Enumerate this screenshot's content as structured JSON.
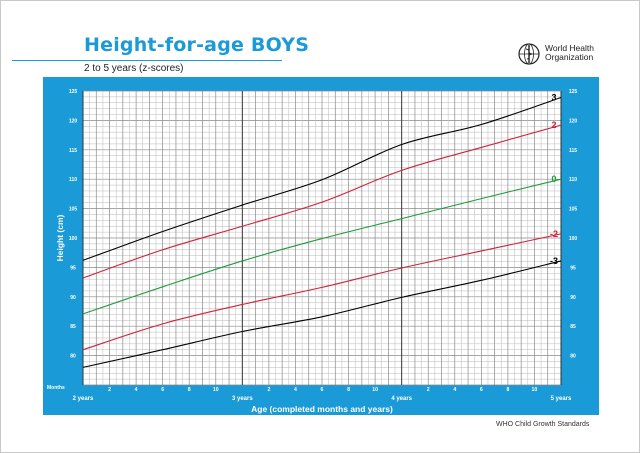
{
  "header": {
    "title": "Height-for-age BOYS",
    "subtitle": "2 to 5 years (z-scores)"
  },
  "organization": {
    "name_line1": "World Health",
    "name_line2": "Organization",
    "logo_icon": "who-emblem-icon"
  },
  "footer": {
    "note": "WHO Child Growth Standards"
  },
  "colors": {
    "frame": "#1a9ad6",
    "title": "#1a9ad6",
    "z3": "#000000",
    "z2": "#d0213c",
    "z0": "#1f9d3a",
    "zm2": "#d0213c",
    "zm3": "#000000"
  },
  "chart_data": {
    "type": "line",
    "title": "Height-for-age BOYS",
    "subtitle": "2 to 5 years (z-scores)",
    "xlabel": "Age (completed months and years)",
    "ylabel": "Height (cm)",
    "x_unit_label": "Months",
    "xlim": [
      24,
      60
    ],
    "ylim": [
      75,
      125
    ],
    "y_ticks": [
      80,
      85,
      90,
      95,
      100,
      105,
      110,
      115,
      120,
      125
    ],
    "x_month_ticks": [
      "2",
      "4",
      "6",
      "8",
      "10",
      "2",
      "4",
      "6",
      "8",
      "10",
      "2",
      "4",
      "6",
      "8",
      "10"
    ],
    "year_labels": [
      "2 years",
      "3 years",
      "4 years",
      "5 years"
    ],
    "grid": true,
    "x": [
      24,
      30,
      36,
      42,
      48,
      54,
      60
    ],
    "series": [
      {
        "name": "3",
        "values": [
          96.2,
          101.1,
          105.6,
          109.9,
          115.9,
          119.3,
          123.9
        ]
      },
      {
        "name": "2",
        "values": [
          93.2,
          98.0,
          102.0,
          106.1,
          111.5,
          115.4,
          119.2
        ]
      },
      {
        "name": "0",
        "values": [
          87.1,
          91.7,
          96.1,
          99.9,
          103.3,
          106.7,
          110.0
        ]
      },
      {
        "name": "-2",
        "values": [
          81.0,
          85.4,
          88.7,
          91.6,
          94.9,
          97.8,
          100.7
        ]
      },
      {
        "name": "-3",
        "values": [
          78.0,
          81.0,
          84.1,
          86.6,
          89.9,
          92.8,
          96.1
        ]
      }
    ]
  }
}
